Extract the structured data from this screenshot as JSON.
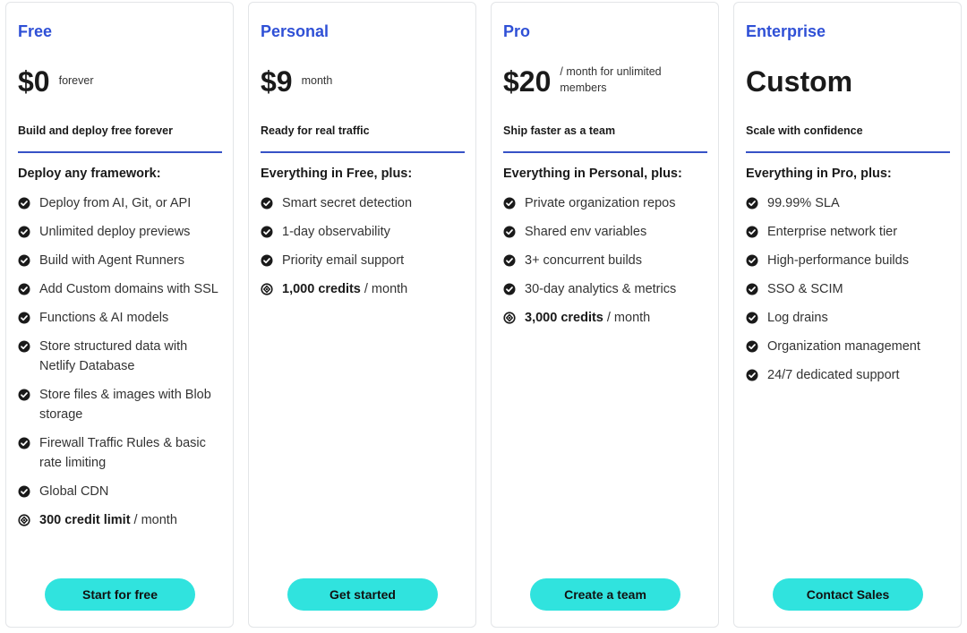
{
  "plans": [
    {
      "name": "Free",
      "price": "$0",
      "price_note": "forever",
      "tagline": "Build and deploy free forever",
      "features_heading": "Deploy any framework:",
      "features": [
        {
          "text": "Deploy from AI, Git, or API"
        },
        {
          "text": "Unlimited deploy previews"
        },
        {
          "text": "Build with Agent Runners"
        },
        {
          "text": "Add Custom domains with SSL"
        },
        {
          "text": "Functions & AI models"
        },
        {
          "text": "Store structured data with Netlify Database"
        },
        {
          "text": "Store files & images with Blob storage"
        },
        {
          "text": "Firewall Traffic Rules & basic rate limiting"
        },
        {
          "text": "Global CDN"
        },
        {
          "bold": "300 credit limit",
          "text": "/ month"
        }
      ],
      "cta": "Start for free"
    },
    {
      "name": "Personal",
      "price": "$9",
      "price_note": "month",
      "tagline": "Ready for real traffic",
      "features_heading": "Everything in Free, plus:",
      "features": [
        {
          "text": "Smart secret detection"
        },
        {
          "text": "1-day observability"
        },
        {
          "text": "Priority email support"
        },
        {
          "bold": "1,000 credits",
          "text": "/ month"
        }
      ],
      "cta": "Get started"
    },
    {
      "name": "Pro",
      "price": "$20",
      "price_note": "/ month for unlimited members",
      "tagline": "Ship faster as a team",
      "features_heading": "Everything in Personal, plus:",
      "features": [
        {
          "text": "Private organization repos"
        },
        {
          "text": "Shared env variables"
        },
        {
          "text": "3+ concurrent builds"
        },
        {
          "text": "30-day analytics & metrics"
        },
        {
          "bold": "3,000 credits",
          "text": "/ month"
        }
      ],
      "cta": "Create a team"
    },
    {
      "name": "Enterprise",
      "price": "Custom",
      "tagline": "Scale with confidence",
      "features_heading": "Everything in Pro, plus:",
      "features": [
        {
          "text": "99.99% SLA"
        },
        {
          "text": "Enterprise network tier"
        },
        {
          "text": "High-performance builds"
        },
        {
          "text": "SSO & SCIM"
        },
        {
          "text": "Log drains"
        },
        {
          "text": "Organization management"
        },
        {
          "text": "24/7 dedicated support"
        }
      ],
      "cta": "Contact Sales"
    }
  ]
}
